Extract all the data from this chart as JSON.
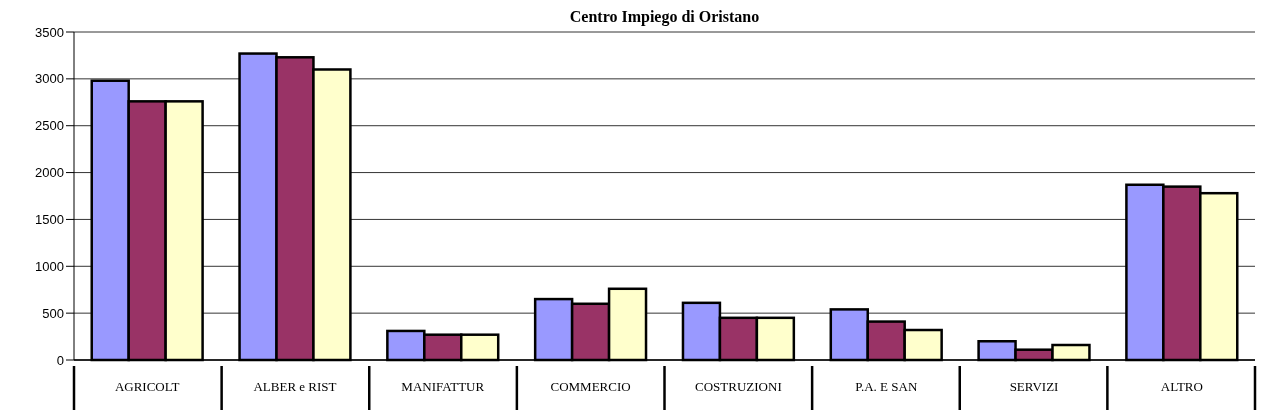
{
  "chart_data": {
    "type": "bar",
    "title": "Centro Impiego di Oristano",
    "categories": [
      "AGRICOLT",
      "ALBER e RIST",
      "MANIFATTUR",
      "COMMERCIO",
      "COSTRUZIONI",
      "P.A. E SAN",
      "SERVIZI",
      "ALTRO"
    ],
    "series": [
      {
        "color": "#9999ff",
        "values": [
          2980,
          3270,
          310,
          650,
          610,
          540,
          200,
          1870
        ]
      },
      {
        "color": "#993366",
        "values": [
          2760,
          3230,
          270,
          600,
          450,
          410,
          110,
          1850
        ]
      },
      {
        "color": "#ffffcc",
        "values": [
          2760,
          3100,
          270,
          760,
          450,
          320,
          160,
          1780
        ]
      }
    ],
    "ylim": [
      0,
      3500
    ],
    "yticks": [
      0,
      500,
      1000,
      1500,
      2000,
      2500,
      3000,
      3500
    ],
    "grid": "y"
  }
}
